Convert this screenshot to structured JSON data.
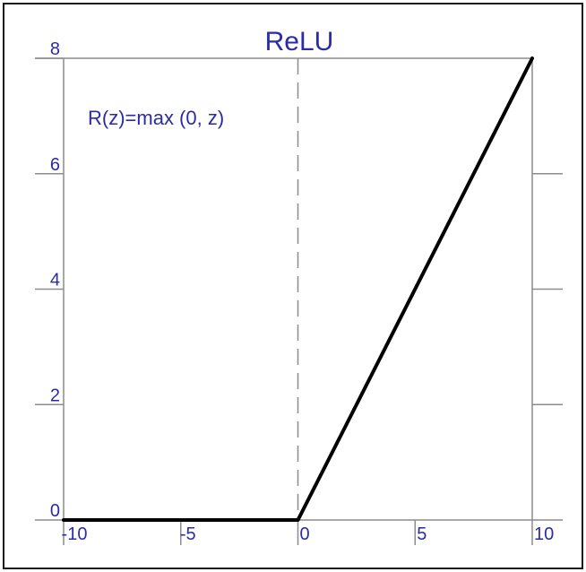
{
  "chart_data": {
    "type": "line",
    "title": "ReLU",
    "annotation": "R(z)=max (0, z)",
    "xlabel": "",
    "ylabel": "",
    "xlim": [
      -10,
      10
    ],
    "ylim": [
      0,
      8
    ],
    "x_ticks": [
      -10,
      -5,
      0,
      5,
      10
    ],
    "y_ticks": [
      0,
      2,
      4,
      6,
      8
    ],
    "x_tick_labels": [
      "-10",
      "-5",
      "0",
      "5",
      "10"
    ],
    "y_tick_labels": [
      "0",
      "2",
      "4",
      "6",
      "8"
    ],
    "grid": false,
    "zero_line": "dashed",
    "series": [
      {
        "x": [
          -10,
          0,
          10
        ],
        "y": [
          0,
          0,
          8
        ],
        "color": "#000000"
      }
    ],
    "colors": {
      "text": "#2b2ba8",
      "axis": "#8c8c8c",
      "line": "#000000"
    }
  }
}
